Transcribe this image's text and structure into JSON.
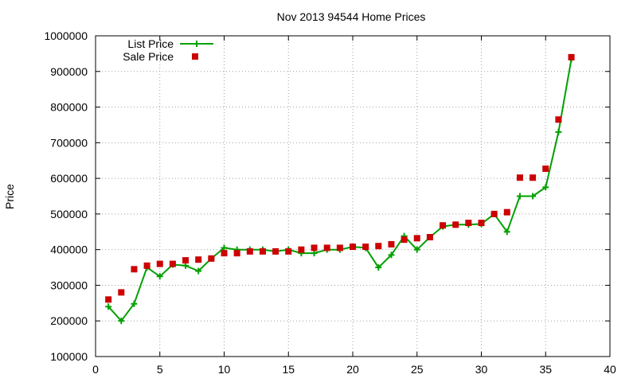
{
  "chart_data": {
    "type": "line",
    "title": "Nov 2013 94544 Home Prices",
    "xlabel": "",
    "ylabel": "Price",
    "xlim": [
      0,
      40
    ],
    "ylim": [
      100000,
      1000000
    ],
    "xticks": [
      0,
      5,
      10,
      15,
      20,
      25,
      30,
      35,
      40
    ],
    "yticks": [
      100000,
      200000,
      300000,
      400000,
      500000,
      600000,
      700000,
      800000,
      900000,
      1000000
    ],
    "xtick_labels": [
      "0",
      "5",
      "10",
      "15",
      "20",
      "25",
      "30",
      "35",
      "40"
    ],
    "ytick_labels": [
      "100000",
      "200000",
      "300000",
      "400000",
      "500000",
      "600000",
      "700000",
      "800000",
      "900000",
      "1000000"
    ],
    "grid": true,
    "legend_position": "top-left",
    "x": [
      1,
      2,
      3,
      4,
      5,
      6,
      7,
      8,
      9,
      10,
      11,
      12,
      13,
      14,
      15,
      16,
      17,
      18,
      19,
      20,
      21,
      22,
      23,
      24,
      25,
      26,
      27,
      28,
      29,
      30,
      31,
      32,
      33,
      34,
      35,
      36,
      37
    ],
    "series": [
      {
        "name": "List Price",
        "style": "line+cross",
        "color": "#00a000",
        "values": [
          240000,
          200000,
          248000,
          350000,
          325000,
          358000,
          355000,
          340000,
          375000,
          405000,
          400000,
          400000,
          400000,
          395000,
          400000,
          390000,
          390000,
          400000,
          400000,
          408000,
          405000,
          350000,
          385000,
          438000,
          400000,
          435000,
          465000,
          470000,
          470000,
          472000,
          500000,
          450000,
          550000,
          550000,
          575000,
          730000,
          935000
        ]
      },
      {
        "name": "Sale Price",
        "style": "square-points",
        "color": "#cc0000",
        "values": [
          260000,
          280000,
          345000,
          355000,
          360000,
          360000,
          370000,
          372000,
          375000,
          390000,
          390000,
          395000,
          395000,
          395000,
          395000,
          400000,
          405000,
          405000,
          405000,
          408000,
          408000,
          410000,
          415000,
          428000,
          432000,
          435000,
          468000,
          470000,
          475000,
          475000,
          500000,
          505000,
          602000,
          602000,
          627000,
          765000,
          940000
        ]
      }
    ]
  }
}
